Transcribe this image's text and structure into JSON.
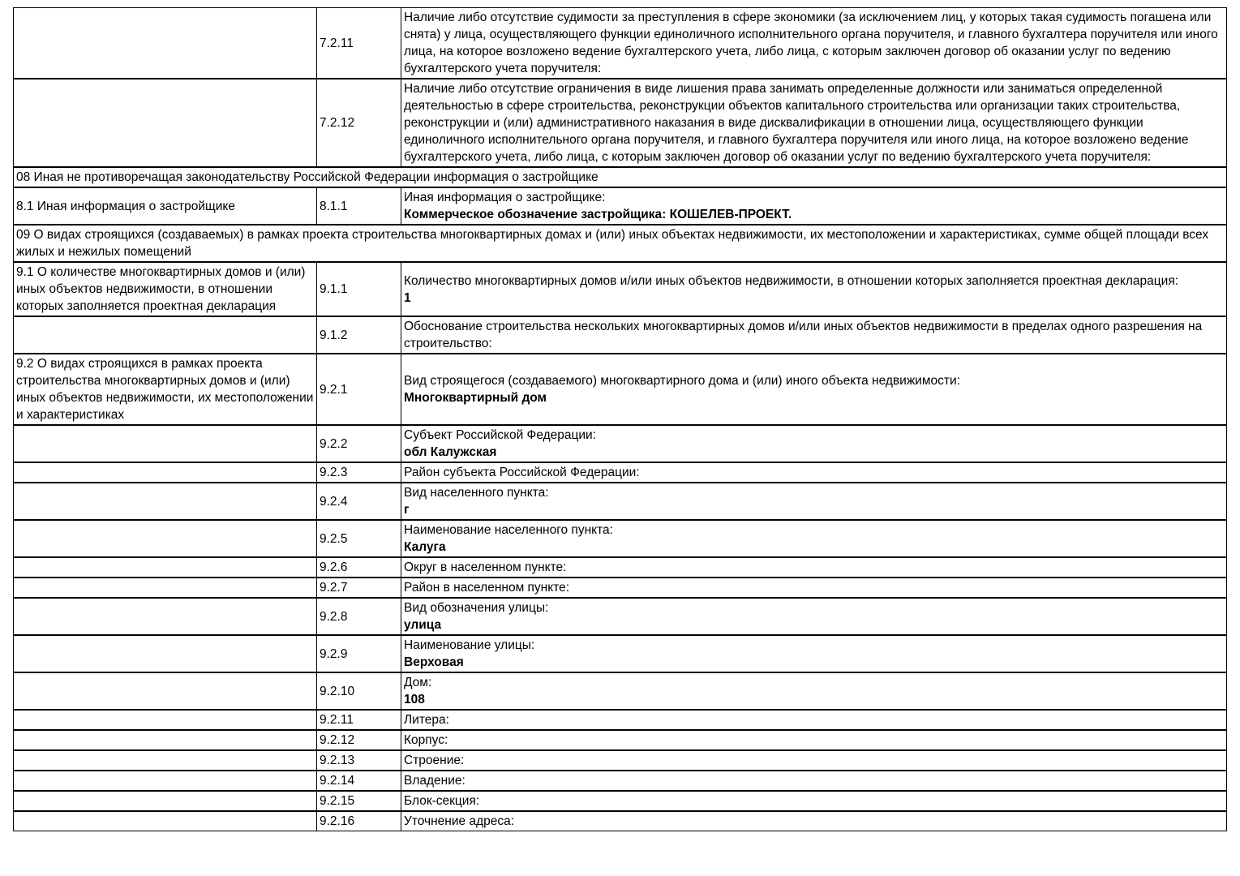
{
  "page": {
    "background": "#ffffff",
    "text_color": "#000000",
    "border_color": "#000000"
  },
  "rows": [
    {
      "type": "item",
      "left": "",
      "num": "7.2.11",
      "label": "Наличие либо отсутствие судимости за преступления в сфере экономики (за исключением лиц, у которых такая судимость погашена или снята) у лица, осуществляющего функции единоличного исполнительного органа поручителя, и главного бухгалтера поручителя или иного лица, на которое возложено ведение бухгалтерского учета, либо лица, с которым заключен договор об оказании услуг по ведению бухгалтерского учета поручителя:",
      "value": ""
    },
    {
      "type": "item",
      "left": "",
      "num": "7.2.12",
      "label": "Наличие либо отсутствие ограничения в виде лишения права занимать определенные должности или заниматься определенной деятельностью в сфере строительства, реконструкции объектов капитального строительства или организации таких строительства, реконструкции и (или) административного наказания в виде дисквалификации в отношении лица, осуществляющего функции единоличного исполнительного органа поручителя, и главного бухгалтера поручителя или иного лица, на которое возложено ведение бухгалтерского учета, либо лица, с которым заключен договор об оказании услуг по ведению бухгалтерского учета поручителя:",
      "value": ""
    },
    {
      "type": "section",
      "text": "08 Иная не противоречащая законодательству Российской Федерации информация о застройщике"
    },
    {
      "type": "item",
      "left": "8.1 Иная информация о застройщике",
      "num": "8.1.1",
      "label": "Иная информация о застройщике:",
      "value": "Коммерческое обозначение застройщика: КОШЕЛЕВ-ПРОЕКТ."
    },
    {
      "type": "section",
      "text": "09 О видах строящихся (создаваемых) в рамках проекта строительства многоквартирных домах и (или) иных объектах недвижимости, их местоположении и характеристиках, сумме общей площади всех жилых и нежилых помещений"
    },
    {
      "type": "item",
      "left": "9.1 О количестве многоквартирных домов и (или) иных объектов недвижимости, в отношении которых заполняется проектная декларация",
      "num": "9.1.1",
      "label": "Количество многоквартирных домов и/или иных объектов недвижимости, в отношении которых заполняется проектная декларация:",
      "value": "1"
    },
    {
      "type": "item",
      "left": "",
      "num": "9.1.2",
      "label": "Обоснование строительства нескольких многоквартирных домов и/или иных объектов недвижимости в пределах одного разрешения на строительство:",
      "value": ""
    },
    {
      "type": "item",
      "left": "9.2 О видах строящихся в рамках проекта строительства многоквартирных домов и (или) иных объектов недвижимости, их местоположении и характеристиках",
      "num": "9.2.1",
      "label": "Вид строящегося (создаваемого) многоквартирного дома и (или) иного объекта недвижимости:",
      "value": "Многоквартирный дом"
    },
    {
      "type": "item",
      "left": "",
      "num": "9.2.2",
      "label": "Субъект Российской Федерации:",
      "value": "обл Калужская"
    },
    {
      "type": "item",
      "left": "",
      "num": "9.2.3",
      "label": "Район субъекта Российской Федерации:",
      "value": ""
    },
    {
      "type": "item",
      "left": "",
      "num": "9.2.4",
      "label": "Вид населенного пункта:",
      "value": "г"
    },
    {
      "type": "item",
      "left": "",
      "num": "9.2.5",
      "label": "Наименование населенного пункта:",
      "value": "Калуга"
    },
    {
      "type": "item",
      "left": "",
      "num": "9.2.6",
      "label": "Округ в населенном пункте:",
      "value": ""
    },
    {
      "type": "item",
      "left": "",
      "num": "9.2.7",
      "label": "Район в населенном пункте:",
      "value": ""
    },
    {
      "type": "item",
      "left": "",
      "num": "9.2.8",
      "label": "Вид обозначения улицы:",
      "value": "улица"
    },
    {
      "type": "item",
      "left": "",
      "num": "9.2.9",
      "label": "Наименование улицы:",
      "value": "Верховая"
    },
    {
      "type": "item",
      "left": "",
      "num": "9.2.10",
      "label": "Дом:",
      "value": "108"
    },
    {
      "type": "item",
      "left": "",
      "num": "9.2.11",
      "label": "Литера:",
      "value": ""
    },
    {
      "type": "item",
      "left": "",
      "num": "9.2.12",
      "label": "Корпус:",
      "value": ""
    },
    {
      "type": "item",
      "left": "",
      "num": "9.2.13",
      "label": "Строение:",
      "value": ""
    },
    {
      "type": "item",
      "left": "",
      "num": "9.2.14",
      "label": "Владение:",
      "value": ""
    },
    {
      "type": "item",
      "left": "",
      "num": "9.2.15",
      "label": "Блок-секция:",
      "value": ""
    },
    {
      "type": "item",
      "left": "",
      "num": "9.2.16",
      "label": "Уточнение адреса:",
      "value": ""
    }
  ]
}
